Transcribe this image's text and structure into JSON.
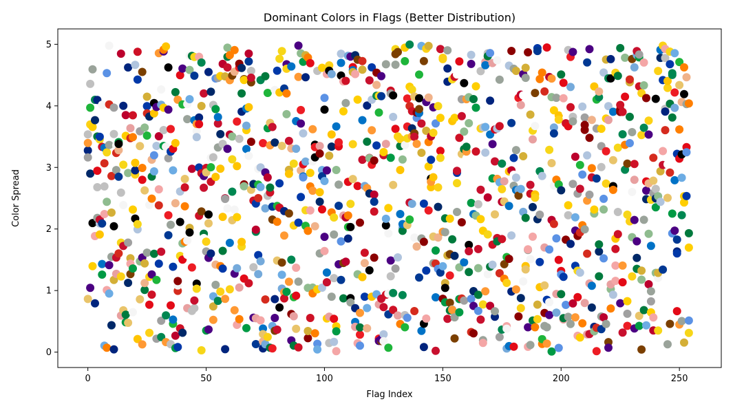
{
  "chart_data": {
    "type": "scatter",
    "title": "Dominant Colors in Flags (Better Distribution)",
    "xlabel": "Flag Index",
    "ylabel": "Color Spread",
    "xlim": [
      -12.7,
      267.7
    ],
    "ylim": [
      -0.25,
      5.25
    ],
    "x_ticks": [
      0,
      50,
      100,
      150,
      200,
      250
    ],
    "y_ticks": [
      0,
      1,
      2,
      3,
      4,
      5
    ],
    "x_tick_labels": [
      "0",
      "50",
      "100",
      "150",
      "200",
      "250"
    ],
    "y_tick_labels": [
      "0",
      "1",
      "2",
      "3",
      "4",
      "5"
    ],
    "grid": false,
    "legend": "none",
    "n_flags": 255,
    "points_per_flag": 5,
    "y_range": [
      0,
      5
    ],
    "palette": [
      "#c8102e",
      "#ce1126",
      "#ed1c24",
      "#e30a17",
      "#007a3d",
      "#009a44",
      "#008751",
      "#1eb53a",
      "#003893",
      "#002868",
      "#0038a8",
      "#0072c6",
      "#00247d",
      "#fcd116",
      "#ffce00",
      "#f7d618",
      "#ffc400",
      "#000000",
      "#ffffff",
      "#f5f5f5",
      "#f4a6a6",
      "#e8a0a0",
      "#6cace4",
      "#75aadb",
      "#5b92e5",
      "#ff7f00",
      "#ff9933",
      "#d52b1e",
      "#bc002d",
      "#7b3f00",
      "#8b0000",
      "#4b0082",
      "#d4af37",
      "#c0c0c0",
      "#9aa39a",
      "#e9c46a",
      "#f0b28a",
      "#b0c4de",
      "#8fbc8f",
      "#a0a0a0"
    ],
    "marker_size": 12
  }
}
